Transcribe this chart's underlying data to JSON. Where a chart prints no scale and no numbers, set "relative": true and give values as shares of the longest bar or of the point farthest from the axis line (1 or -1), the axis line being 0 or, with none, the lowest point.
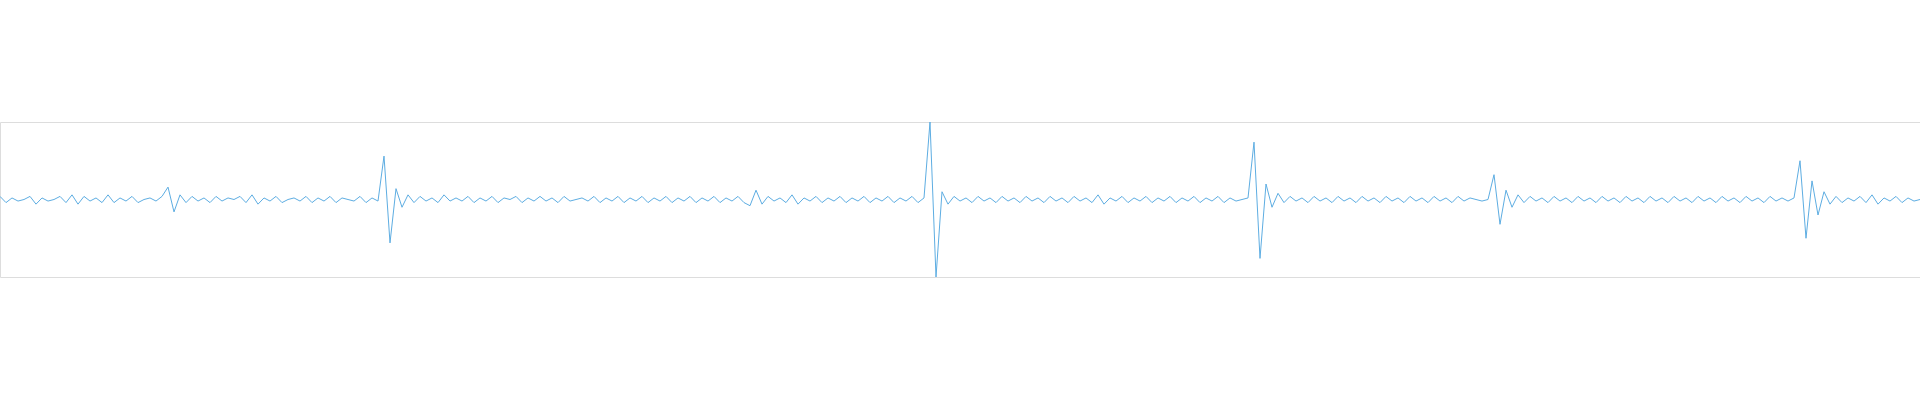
{
  "chart_data": {
    "type": "line",
    "relative": true,
    "color": "#5dade2",
    "categories": [
      null,
      null,
      null,
      null,
      null,
      null,
      null,
      null,
      null,
      null,
      null,
      null,
      null,
      null,
      null,
      null,
      null,
      null,
      null,
      null,
      null,
      null,
      null,
      null,
      null,
      null,
      null,
      null,
      null,
      null,
      null,
      null,
      null,
      null,
      null,
      null,
      null,
      null,
      null,
      null,
      null,
      null,
      null,
      null,
      null,
      null,
      null,
      null,
      null,
      null,
      null,
      null,
      null,
      null,
      null,
      null,
      null,
      null,
      null,
      null,
      null,
      null,
      null,
      null,
      null,
      null,
      null,
      null,
      null,
      null,
      null,
      null,
      null,
      null,
      null,
      null,
      null,
      null,
      null,
      null,
      null,
      null,
      null,
      null,
      null,
      null,
      null,
      null,
      null,
      null,
      null,
      null,
      null,
      null,
      null,
      null,
      null,
      null,
      null,
      null,
      null,
      null,
      null,
      null,
      null,
      null,
      null,
      null,
      null,
      null,
      null,
      null,
      null,
      null,
      null,
      null,
      null,
      null,
      null,
      null,
      null,
      null,
      null,
      null,
      null,
      null,
      null,
      null,
      null,
      null,
      null,
      null,
      null,
      null,
      null,
      null,
      null,
      null,
      null,
      null,
      null,
      null,
      null,
      null,
      null,
      null,
      null,
      null,
      null,
      null,
      null,
      null,
      null,
      null,
      null,
      null,
      null,
      null,
      null,
      null,
      null,
      null,
      null,
      null,
      null,
      null,
      null,
      null,
      null,
      null,
      null,
      null,
      null,
      null,
      null,
      null,
      null,
      null,
      null,
      null,
      null,
      null,
      null,
      null,
      null,
      null,
      null,
      null,
      null,
      null,
      null,
      null,
      null,
      null,
      null,
      null,
      null,
      null,
      null,
      null,
      null,
      null,
      null,
      null,
      null,
      null,
      null,
      null,
      null,
      null,
      null,
      null,
      null,
      null,
      null,
      null,
      null,
      null,
      null,
      null,
      null,
      null,
      null,
      null,
      null,
      null,
      null,
      null,
      null,
      null,
      null,
      null,
      null,
      null,
      null,
      null,
      null,
      null,
      null,
      null,
      null,
      null,
      null,
      null,
      null,
      null,
      null,
      null,
      null,
      null,
      null,
      null,
      null,
      null,
      null,
      null,
      null,
      null,
      null,
      null,
      null,
      null,
      null,
      null,
      null,
      null,
      null,
      null,
      null,
      null,
      null,
      null,
      null,
      null,
      null,
      null,
      null,
      null,
      null,
      null,
      null,
      null,
      null,
      null,
      null,
      null,
      null,
      null,
      null,
      null,
      null,
      null,
      null,
      null,
      null,
      null,
      null,
      null,
      null,
      null,
      null,
      null,
      null,
      null,
      null,
      null,
      null,
      null,
      null,
      null,
      null,
      null,
      null,
      null,
      null,
      null,
      null,
      null,
      null,
      null,
      null
    ],
    "values": [
      0.52,
      0.48,
      0.51,
      0.49,
      0.5,
      0.52,
      0.47,
      0.51,
      0.49,
      0.5,
      0.52,
      0.48,
      0.53,
      0.47,
      0.52,
      0.49,
      0.51,
      0.48,
      0.53,
      0.48,
      0.51,
      0.49,
      0.52,
      0.48,
      0.5,
      0.51,
      0.49,
      0.52,
      0.58,
      0.42,
      0.53,
      0.48,
      0.52,
      0.49,
      0.51,
      0.48,
      0.52,
      0.49,
      0.51,
      0.5,
      0.52,
      0.48,
      0.53,
      0.47,
      0.51,
      0.49,
      0.52,
      0.48,
      0.5,
      0.51,
      0.49,
      0.52,
      0.48,
      0.51,
      0.49,
      0.52,
      0.48,
      0.51,
      0.5,
      0.49,
      0.52,
      0.48,
      0.51,
      0.49,
      0.78,
      0.22,
      0.57,
      0.45,
      0.53,
      0.48,
      0.52,
      0.49,
      0.51,
      0.48,
      0.53,
      0.49,
      0.51,
      0.49,
      0.52,
      0.48,
      0.51,
      0.49,
      0.52,
      0.48,
      0.51,
      0.5,
      0.52,
      0.48,
      0.51,
      0.49,
      0.52,
      0.49,
      0.51,
      0.48,
      0.52,
      0.49,
      0.5,
      0.51,
      0.49,
      0.52,
      0.48,
      0.51,
      0.49,
      0.52,
      0.48,
      0.51,
      0.49,
      0.52,
      0.48,
      0.51,
      0.49,
      0.52,
      0.48,
      0.51,
      0.49,
      0.52,
      0.48,
      0.51,
      0.49,
      0.52,
      0.48,
      0.51,
      0.49,
      0.52,
      0.48,
      0.46,
      0.56,
      0.47,
      0.52,
      0.49,
      0.51,
      0.48,
      0.53,
      0.47,
      0.51,
      0.49,
      0.52,
      0.48,
      0.51,
      0.49,
      0.52,
      0.48,
      0.51,
      0.49,
      0.52,
      0.48,
      0.51,
      0.49,
      0.52,
      0.48,
      0.51,
      0.49,
      0.52,
      0.48,
      0.51,
      1.0,
      0.0,
      0.55,
      0.47,
      0.52,
      0.49,
      0.51,
      0.48,
      0.52,
      0.49,
      0.51,
      0.48,
      0.52,
      0.49,
      0.51,
      0.48,
      0.52,
      0.49,
      0.51,
      0.48,
      0.52,
      0.49,
      0.51,
      0.48,
      0.52,
      0.49,
      0.51,
      0.48,
      0.53,
      0.47,
      0.51,
      0.49,
      0.52,
      0.48,
      0.51,
      0.49,
      0.52,
      0.48,
      0.51,
      0.49,
      0.52,
      0.48,
      0.51,
      0.49,
      0.52,
      0.48,
      0.51,
      0.49,
      0.52,
      0.48,
      0.51,
      0.49,
      0.5,
      0.51,
      0.87,
      0.12,
      0.6,
      0.45,
      0.54,
      0.48,
      0.52,
      0.49,
      0.51,
      0.48,
      0.52,
      0.49,
      0.51,
      0.48,
      0.52,
      0.49,
      0.51,
      0.48,
      0.52,
      0.49,
      0.51,
      0.48,
      0.52,
      0.49,
      0.51,
      0.48,
      0.52,
      0.49,
      0.51,
      0.48,
      0.52,
      0.49,
      0.51,
      0.48,
      0.52,
      0.49,
      0.51,
      0.5,
      0.49,
      0.5,
      0.66,
      0.34,
      0.56,
      0.45,
      0.53,
      0.48,
      0.52,
      0.49,
      0.51,
      0.48,
      0.52,
      0.49,
      0.51,
      0.48,
      0.52,
      0.49,
      0.51,
      0.48,
      0.52,
      0.49,
      0.51,
      0.48,
      0.52,
      0.49,
      0.51,
      0.48,
      0.52,
      0.49,
      0.51,
      0.48,
      0.52,
      0.49,
      0.51,
      0.48,
      0.52,
      0.49,
      0.51,
      0.48,
      0.52,
      0.49,
      0.51,
      0.48,
      0.52,
      0.49,
      0.51,
      0.48,
      0.52,
      0.49,
      0.51,
      0.49,
      0.51,
      0.75,
      0.25,
      0.62,
      0.4,
      0.55,
      0.47,
      0.52,
      0.48,
      0.51,
      0.49,
      0.52,
      0.48,
      0.53,
      0.47,
      0.51,
      0.49,
      0.52,
      0.48,
      0.51,
      0.49,
      0.5
    ]
  }
}
